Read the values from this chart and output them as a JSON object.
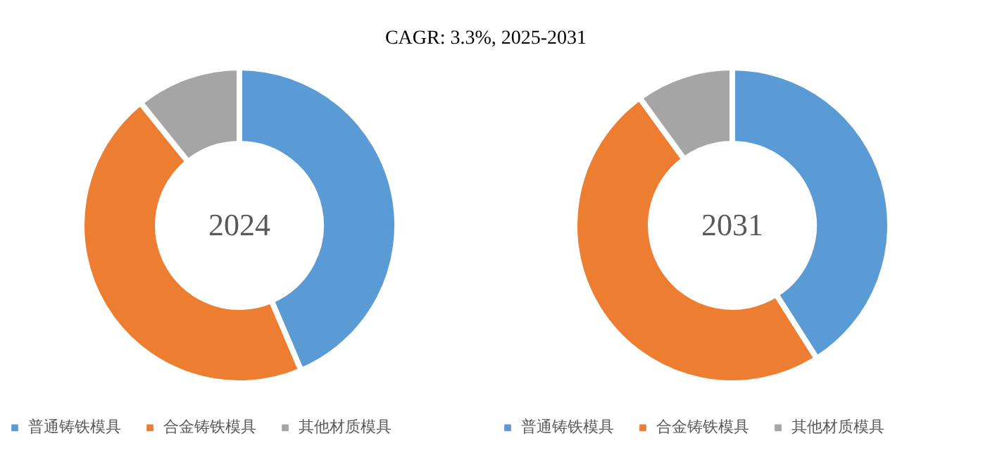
{
  "chart_data": [
    {
      "type": "donut",
      "title": "2024",
      "annotations": [
        "CAGR:     3.3%, 2025-2031"
      ],
      "categories": [
        "普通铸铁模具",
        "合金铸铁模具",
        "其他材质模具"
      ],
      "values": [
        43.6,
        45.6,
        10.8
      ],
      "colors": [
        "#5b9bd5",
        "#ed7d31",
        "#a5a5a5"
      ],
      "legend": "bottom"
    },
    {
      "type": "donut",
      "title": "2031",
      "categories": [
        "普通铸铁模具",
        "合金铸铁模具",
        "其他材质模具"
      ],
      "values": [
        41,
        49,
        10
      ],
      "colors": [
        "#5b9bd5",
        "#ed7d31",
        "#a5a5a5"
      ],
      "legend": "bottom"
    }
  ]
}
